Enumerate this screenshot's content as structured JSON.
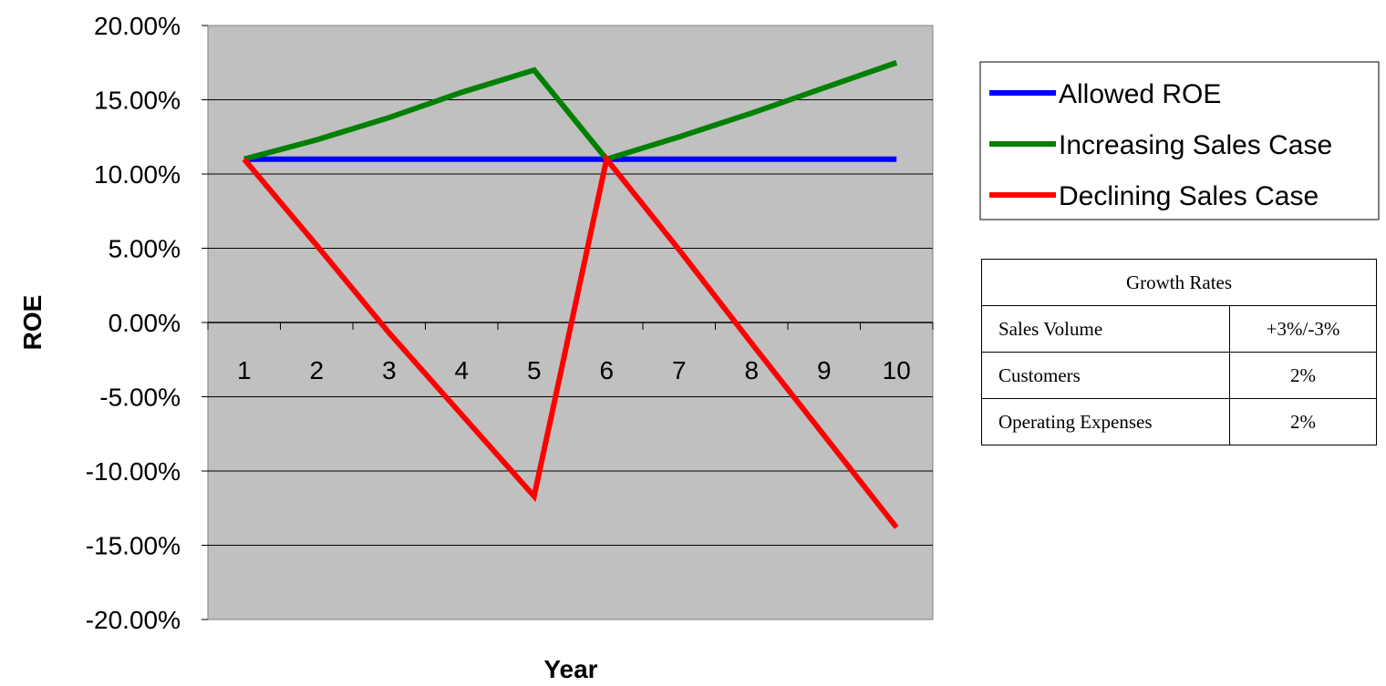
{
  "chart_data": {
    "type": "line",
    "title": "",
    "xlabel": "Year",
    "ylabel": "ROE",
    "x": [
      1,
      2,
      3,
      4,
      5,
      6,
      7,
      8,
      9,
      10
    ],
    "ylim": [
      -0.2,
      0.2
    ],
    "ytick_values": [
      0.2,
      0.15,
      0.1,
      0.05,
      0.0,
      -0.05,
      -0.1,
      -0.15,
      -0.2
    ],
    "ytick_labels": [
      "20.00%",
      "15.00%",
      "10.00%",
      "5.00%",
      "0.00%",
      "-5.00%",
      "-10.00%",
      "-15.00%",
      "-20.00%"
    ],
    "xtick_labels": [
      "1",
      "2",
      "3",
      "4",
      "5",
      "6",
      "7",
      "8",
      "9",
      "10"
    ],
    "grid": "horizontal",
    "plot_background": "#c0c0c0",
    "legend_position": "right",
    "series": [
      {
        "name": "Allowed ROE",
        "color": "#0000ff",
        "values": [
          0.11,
          0.11,
          0.11,
          0.11,
          0.11,
          0.11,
          0.11,
          0.11,
          0.11,
          0.11
        ]
      },
      {
        "name": "Increasing Sales Case",
        "color": "#008000",
        "values": [
          0.11,
          0.123,
          0.138,
          0.155,
          0.17,
          0.11,
          0.125,
          0.141,
          0.158,
          0.175
        ]
      },
      {
        "name": "Declining Sales Case",
        "color": "#ff0000",
        "values": [
          0.11,
          0.052,
          -0.007,
          -0.062,
          -0.117,
          0.11,
          0.049,
          -0.014,
          -0.076,
          -0.138
        ]
      }
    ]
  },
  "growth_table": {
    "header": "Growth Rates",
    "rows": [
      {
        "label": "Sales Volume",
        "value": "+3%/-3%"
      },
      {
        "label": "Customers",
        "value": "2%"
      },
      {
        "label": "Operating Expenses",
        "value": "2%"
      }
    ]
  }
}
